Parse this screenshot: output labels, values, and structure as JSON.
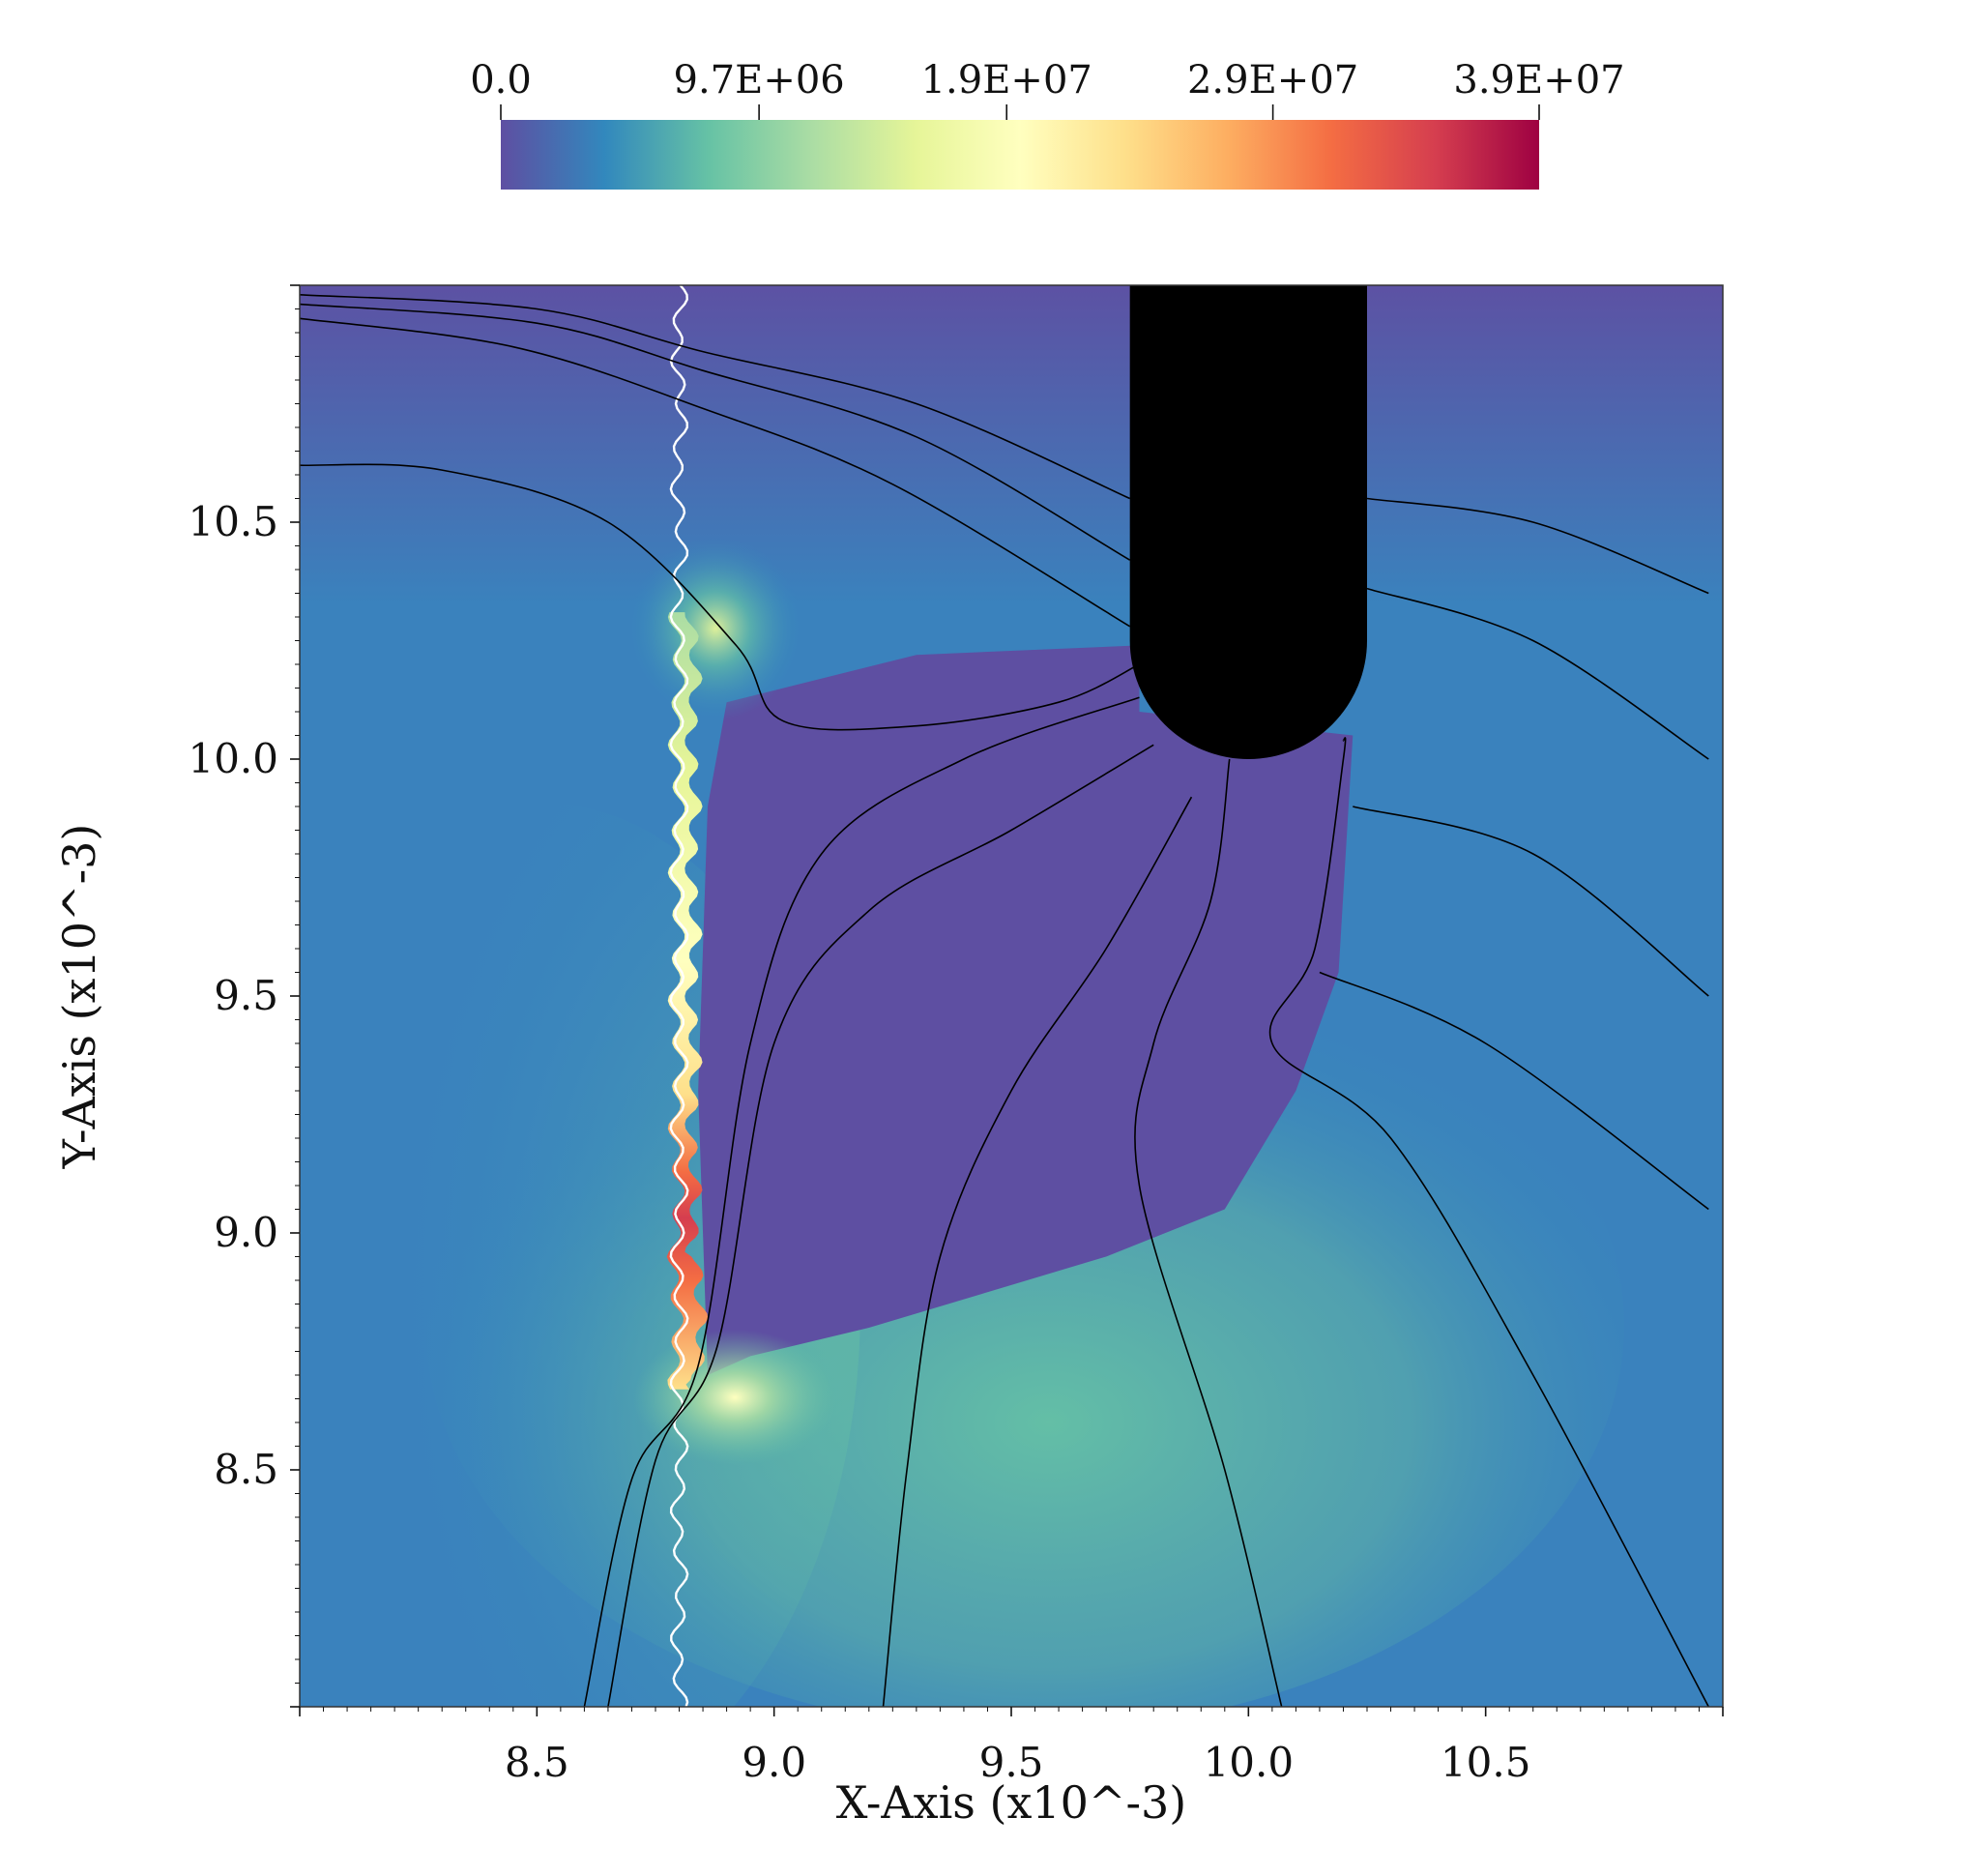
{
  "chart_data": {
    "type": "heatmap",
    "xlabel": "X-Axis (x10^-3)",
    "ylabel": "Y-Axis (x10^-3)",
    "xlim": [
      8.0,
      11.0
    ],
    "ylim": [
      8.0,
      11.0
    ],
    "x_ticks": [
      8.5,
      9.0,
      9.5,
      10.0,
      10.5
    ],
    "x_tick_labels": [
      "8.5",
      "9.0",
      "9.5",
      "10.0",
      "10.5"
    ],
    "y_ticks": [
      8.5,
      9.0,
      9.5,
      10.0,
      10.5
    ],
    "y_tick_labels": [
      "8.5",
      "9.0",
      "9.5",
      "10.0",
      "10.5"
    ],
    "colorbar": {
      "placement": "top",
      "range": [
        0.0,
        39000000
      ],
      "ticks": [
        0.0,
        9700000,
        19000000,
        29000000,
        39000000
      ],
      "tick_labels": [
        "0.0",
        "9.7E+06",
        "1.9E+07",
        "2.9E+07",
        "3.9E+07"
      ],
      "colormap": [
        "#5e4fa2",
        "#3288bd",
        "#66c2a5",
        "#abdda4",
        "#e6f598",
        "#ffffbf",
        "#fee08b",
        "#fdae61",
        "#f46d43",
        "#d53e4f",
        "#9e0142"
      ]
    },
    "obstacle": {
      "shape": "rounded-bar",
      "x_range": [
        9.75,
        10.25
      ],
      "y_bottom": 10.0,
      "y_top": 11.0
    },
    "interface_x_approx": 8.8,
    "streamlines": [
      [
        [
          8.0,
          10.98
        ],
        [
          8.5,
          10.95
        ],
        [
          8.85,
          10.86
        ],
        [
          9.3,
          10.75
        ],
        [
          9.75,
          10.55
        ]
      ],
      [
        [
          8.0,
          10.96
        ],
        [
          8.5,
          10.92
        ],
        [
          8.85,
          10.82
        ],
        [
          9.3,
          10.68
        ],
        [
          9.75,
          10.42
        ]
      ],
      [
        [
          8.0,
          10.93
        ],
        [
          8.45,
          10.87
        ],
        [
          8.85,
          10.74
        ],
        [
          9.25,
          10.58
        ],
        [
          9.75,
          10.28
        ]
      ],
      [
        [
          8.0,
          10.62
        ],
        [
          8.3,
          10.61
        ],
        [
          8.65,
          10.5
        ],
        [
          8.92,
          10.24
        ],
        [
          9.02,
          10.08
        ],
        [
          9.3,
          10.07
        ],
        [
          9.6,
          10.12
        ],
        [
          9.77,
          10.2
        ]
      ],
      [
        [
          8.6,
          8.0
        ],
        [
          8.7,
          8.48
        ],
        [
          8.84,
          8.72
        ],
        [
          8.95,
          9.4
        ],
        [
          9.1,
          9.8
        ],
        [
          9.4,
          10.0
        ],
        [
          9.77,
          10.13
        ]
      ],
      [
        [
          8.65,
          8.0
        ],
        [
          8.75,
          8.52
        ],
        [
          8.88,
          8.76
        ],
        [
          9.0,
          9.4
        ],
        [
          9.2,
          9.68
        ],
        [
          9.5,
          9.85
        ],
        [
          9.8,
          10.03
        ]
      ],
      [
        [
          9.23,
          8.0
        ],
        [
          9.28,
          8.5
        ],
        [
          9.35,
          8.95
        ],
        [
          9.5,
          9.3
        ],
        [
          9.7,
          9.6
        ],
        [
          9.88,
          9.92
        ]
      ],
      [
        [
          10.07,
          8.0
        ],
        [
          9.95,
          8.5
        ],
        [
          9.77,
          9.1
        ],
        [
          9.8,
          9.4
        ],
        [
          9.92,
          9.7
        ],
        [
          9.96,
          10.0
        ]
      ],
      [
        [
          10.97,
          8.0
        ],
        [
          10.6,
          8.7
        ],
        [
          10.3,
          9.2
        ],
        [
          10.05,
          9.4
        ],
        [
          10.14,
          9.6
        ],
        [
          10.2,
          10.0
        ],
        [
          10.2,
          10.04
        ]
      ],
      [
        [
          10.25,
          10.55
        ],
        [
          10.6,
          10.5
        ],
        [
          10.97,
          10.35
        ]
      ],
      [
        [
          10.25,
          10.36
        ],
        [
          10.6,
          10.25
        ],
        [
          10.97,
          10.0
        ]
      ],
      [
        [
          10.22,
          9.9
        ],
        [
          10.6,
          9.8
        ],
        [
          10.97,
          9.5
        ]
      ],
      [
        [
          10.15,
          9.55
        ],
        [
          10.5,
          9.4
        ],
        [
          10.97,
          9.05
        ]
      ]
    ]
  }
}
